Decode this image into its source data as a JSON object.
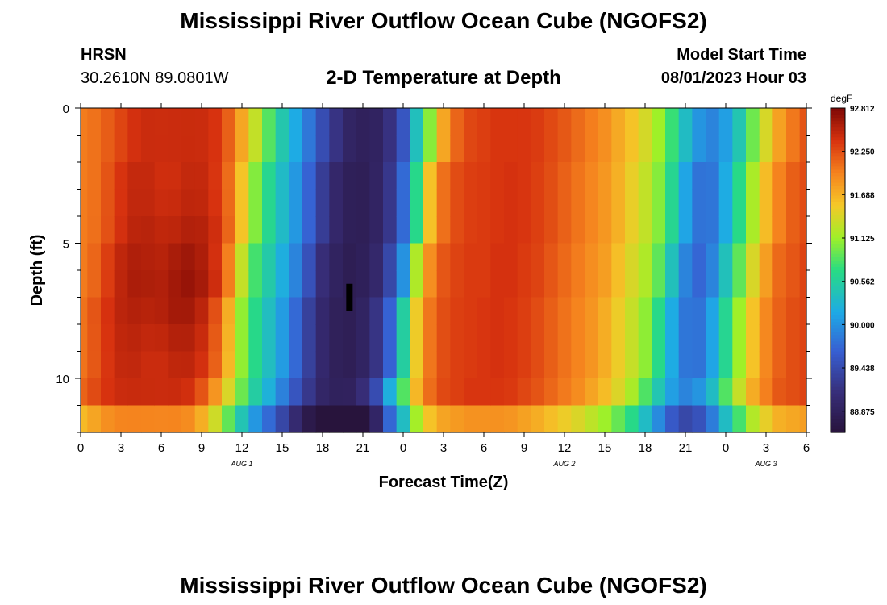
{
  "header": {
    "title": "Mississippi River Outflow Ocean Cube (NGOFS2)",
    "station": "HRSN",
    "coords": "30.2610N  89.0801W",
    "subtitle": "2-D Temperature at Depth",
    "model_start_label": "Model Start Time",
    "model_start_value": "08/01/2023 Hour 03"
  },
  "footer": {
    "title": "Mississippi River Outflow Ocean Cube (NGOFS2)"
  },
  "chart_data": {
    "type": "heatmap",
    "title": "2-D Temperature at Depth",
    "xlabel": "Forecast Time(Z)",
    "ylabel": "Depth (ft)",
    "x_range_hours": [
      0,
      54
    ],
    "x_tick_labels": [
      "0",
      "3",
      "6",
      "9",
      "12",
      "15",
      "18",
      "21",
      "0",
      "3",
      "6",
      "9",
      "12",
      "15",
      "18",
      "21",
      "0",
      "3",
      "6"
    ],
    "date_labels": [
      {
        "label": "AUG 1",
        "hour": 12
      },
      {
        "label": "AUG 2",
        "hour": 36
      },
      {
        "label": "AUG 3",
        "hour": 51
      }
    ],
    "y_range_ft": [
      0,
      12
    ],
    "y_tick_labels": [
      "0",
      "5",
      "10"
    ],
    "y_tick_values": [
      0,
      5,
      10
    ],
    "colorbar": {
      "unit": "degF",
      "min": 88.6,
      "max": 92.812,
      "tick_labels": [
        "92.812",
        "92.250",
        "91.688",
        "91.125",
        "90.562",
        "90.000",
        "89.438",
        "88.875"
      ],
      "tick_values": [
        92.812,
        92.25,
        91.688,
        91.125,
        90.562,
        90.0,
        89.438,
        88.875
      ]
    },
    "field": {
      "description_model": "temperature degF by forecast hour (columns) and depth bin (rows)",
      "hours": [
        0,
        1,
        2,
        3,
        4,
        5,
        6,
        7,
        8,
        9,
        10,
        11,
        12,
        13,
        14,
        15,
        16,
        17,
        18,
        19,
        20,
        21,
        22,
        23,
        24,
        25,
        26,
        27,
        28,
        29,
        30,
        31,
        32,
        33,
        34,
        35,
        36,
        37,
        38,
        39,
        40,
        41,
        42,
        43,
        44,
        45,
        46,
        47,
        48,
        49,
        50,
        51,
        52,
        53,
        54
      ],
      "surface_profile": [
        92.0,
        92.1,
        92.3,
        92.45,
        92.5,
        92.45,
        92.4,
        92.45,
        92.5,
        92.45,
        92.3,
        91.9,
        91.3,
        90.8,
        90.5,
        90.2,
        89.9,
        89.5,
        89.1,
        88.9,
        88.8,
        88.85,
        89.0,
        89.4,
        90.0,
        91.2,
        91.9,
        92.2,
        92.3,
        92.35,
        92.35,
        92.4,
        92.4,
        92.35,
        92.3,
        92.2,
        92.1,
        92.0,
        91.9,
        91.8,
        91.6,
        91.4,
        91.2,
        90.9,
        90.4,
        89.9,
        89.7,
        89.9,
        90.4,
        90.9,
        91.4,
        91.8,
        92.1,
        92.2,
        92.3
      ],
      "max_hour": 7.5,
      "max_depth_ft": 6.5,
      "max_value": 92.812
    },
    "marker": {
      "hour": 20,
      "depth_ft": [
        6.5,
        7.5
      ]
    }
  }
}
